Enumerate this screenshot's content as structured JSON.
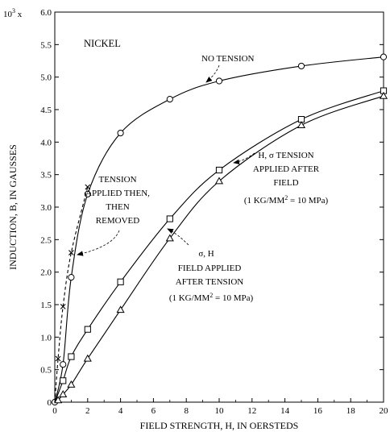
{
  "chart_data": {
    "type": "line",
    "title": "",
    "inset_label": "NICKEL",
    "xlabel": "FIELD STRENGTH, H, IN OERSTEDS",
    "ylabel": "INDUCTION, B, IN GAUSSES",
    "ylabel_multiplier": "10",
    "ylabel_multiplier_exp": "3",
    "ylabel_multiplier_suffix": " x",
    "xlim": [
      0,
      20
    ],
    "ylim": [
      0,
      6.0
    ],
    "xticks": [
      0,
      2,
      4,
      6,
      8,
      10,
      12,
      14,
      16,
      18,
      20
    ],
    "xtick_labels": [
      "0",
      "2",
      "4",
      "6",
      "8",
      "10",
      "12",
      "14",
      "16",
      "18",
      "20"
    ],
    "yticks": [
      0,
      0.5,
      1.0,
      1.5,
      2.0,
      2.5,
      3.0,
      3.5,
      4.0,
      4.5,
      5.0,
      5.5,
      6.0
    ],
    "ytick_labels": [
      "0",
      "0.5",
      "1.0",
      "1.5",
      "2.0",
      "2.5",
      "3.0",
      "3.5",
      "4.0",
      "4.5",
      "5.0",
      "5.5",
      "6.0"
    ],
    "grid": false,
    "series": [
      {
        "name": "NO TENSION",
        "marker": "circle",
        "line": "solid",
        "x": [
          0,
          0.5,
          1,
          2,
          4,
          7,
          10,
          15,
          20
        ],
        "y": [
          0,
          0.58,
          1.92,
          3.2,
          4.14,
          4.66,
          4.94,
          5.17,
          5.31
        ]
      },
      {
        "name": "TENSION APPLIED THEN, THEN REMOVED",
        "marker": "x",
        "line": "dashed",
        "x": [
          0,
          0.2,
          0.5,
          1,
          2
        ],
        "y": [
          0,
          0.67,
          1.47,
          2.3,
          3.31
        ]
      },
      {
        "name": "H, σ TENSION APPLIED AFTER FIELD",
        "marker": "square",
        "line": "solid",
        "x": [
          0,
          0.5,
          1,
          2,
          4,
          7,
          10,
          15,
          20
        ],
        "y": [
          0,
          0.33,
          0.7,
          1.12,
          1.85,
          2.82,
          3.57,
          4.35,
          4.79
        ]
      },
      {
        "name": "σ, H FIELD APPLIED AFTER TENSION",
        "marker": "triangle",
        "line": "solid",
        "x": [
          0,
          0.2,
          0.5,
          1,
          2,
          4,
          7,
          10,
          15,
          20
        ],
        "y": [
          0,
          0.03,
          0.12,
          0.27,
          0.67,
          1.42,
          2.52,
          3.4,
          4.26,
          4.71
        ]
      }
    ],
    "annotations": {
      "no_tension": [
        "NO TENSION"
      ],
      "tension_removed": [
        "TENSION",
        "APPLIED THEN,",
        "THEN",
        "REMOVED"
      ],
      "tension_after_field": [
        "H, σ TENSION",
        "APPLIED AFTER",
        "FIELD"
      ],
      "field_after_tension": [
        "σ, H",
        "FIELD APPLIED",
        "AFTER TENSION"
      ],
      "conversion_prefix": "(1 KG/MM",
      "conversion_exp": "2",
      "conversion_suffix": " = 10 MPa)"
    }
  }
}
